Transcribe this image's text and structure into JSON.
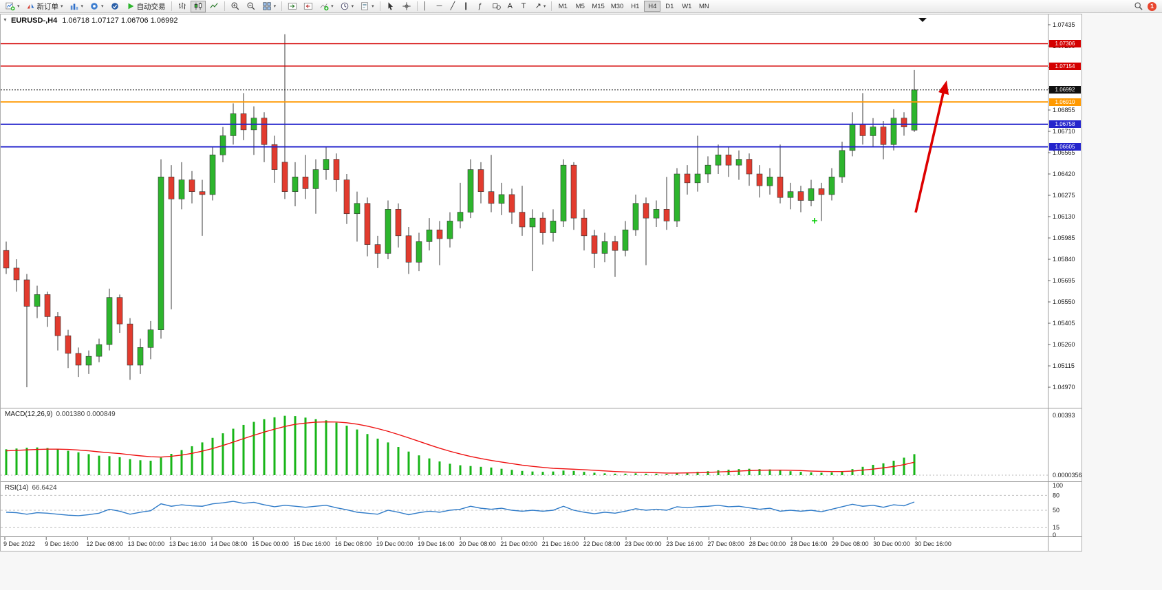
{
  "toolbar": {
    "new_order_label": "新订单",
    "autotrading_label": "自动交易",
    "timeframes": [
      "M1",
      "M5",
      "M15",
      "M30",
      "H1",
      "H4",
      "D1",
      "W1",
      "MN"
    ],
    "active_timeframe": "H4",
    "notification_count": "1",
    "icon_glyphs": {
      "vline": "│",
      "hline": "─",
      "trendline": "╱",
      "channel": "∥",
      "fibonacci": "ƒ",
      "text_tool": "A",
      "label_tool": "T",
      "arrows_tool": "↗"
    }
  },
  "main_chart": {
    "title_symbol_period": "EURUSD-,H4",
    "title_ohlc": "1.06718 1.07127 1.06706 1.06992",
    "open": "1.06718",
    "high": "1.07127",
    "low": "1.06706",
    "close": "1.06992"
  },
  "macd_panel": {
    "label": "MACD(12,26,9)",
    "values": "0.001380 0.000849",
    "axis_max": "0.00393",
    "axis_min": "0.0000356"
  },
  "rsi_panel": {
    "label": "RSI(14)",
    "value": "66.6424"
  },
  "chart_data": {
    "type": "candlestick",
    "symbol": "EURUSD-",
    "timeframe": "H4",
    "bars_per_x_label": 4,
    "x_labels": [
      "9 Dec 2022",
      "9 Dec 16:00",
      "12 Dec 08:00",
      "13 Dec 00:00",
      "13 Dec 16:00",
      "14 Dec 08:00",
      "15 Dec 00:00",
      "15 Dec 16:00",
      "16 Dec 08:00",
      "19 Dec 00:00",
      "19 Dec 16:00",
      "20 Dec 08:00",
      "21 Dec 00:00",
      "21 Dec 16:00",
      "22 Dec 08:00",
      "23 Dec 00:00",
      "23 Dec 16:00",
      "27 Dec 08:00",
      "28 Dec 00:00",
      "28 Dec 16:00",
      "29 Dec 08:00",
      "30 Dec 00:00",
      "30 Dec 16:00"
    ],
    "price_axis": [
      "1.07435",
      "1.07290",
      "1.07145",
      "1.07000",
      "1.06855",
      "1.06710",
      "1.06565",
      "1.06420",
      "1.06275",
      "1.06130",
      "1.05985",
      "1.05840",
      "1.05695",
      "1.05550",
      "1.05405",
      "1.05260",
      "1.05115",
      "1.04970"
    ],
    "main_ylim": [
      1.0483,
      1.07505
    ],
    "levels": [
      {
        "price": 1.07306,
        "label": "1.07306",
        "color": "#d40000",
        "style": "solid",
        "width": 1.4
      },
      {
        "price": 1.07154,
        "label": "1.07154",
        "color": "#d40000",
        "style": "solid",
        "width": 1.4
      },
      {
        "price": 1.06992,
        "label": "1.06992",
        "color": "#101010",
        "style": "dotted",
        "width": 1
      },
      {
        "price": 1.0691,
        "label": "1.06910",
        "color": "#ff9900",
        "style": "solid",
        "width": 2
      },
      {
        "price": 1.06758,
        "label": "1.06758",
        "color": "#2424cc",
        "style": "solid",
        "width": 2
      },
      {
        "price": 1.06605,
        "label": "1.06605",
        "color": "#2424cc",
        "style": "solid",
        "width": 2
      }
    ],
    "current_price": 1.06992,
    "candles": [
      [
        1.059,
        1.0596,
        1.0574,
        1.0578
      ],
      [
        1.0578,
        1.0584,
        1.0562,
        1.057
      ],
      [
        1.057,
        1.0574,
        1.0497,
        1.0552
      ],
      [
        1.0552,
        1.0566,
        1.0544,
        1.056
      ],
      [
        1.056,
        1.0562,
        1.0538,
        1.0545
      ],
      [
        1.0545,
        1.0548,
        1.0522,
        1.0532
      ],
      [
        1.0532,
        1.0536,
        1.051,
        1.052
      ],
      [
        1.052,
        1.0524,
        1.0504,
        1.0512
      ],
      [
        1.0512,
        1.0522,
        1.0506,
        1.0518
      ],
      [
        1.0518,
        1.053,
        1.0514,
        1.0526
      ],
      [
        1.0526,
        1.0564,
        1.0522,
        1.0558
      ],
      [
        1.0558,
        1.056,
        1.0534,
        1.054
      ],
      [
        1.054,
        1.0544,
        1.0502,
        1.0512
      ],
      [
        1.0512,
        1.053,
        1.0506,
        1.0524
      ],
      [
        1.0524,
        1.0542,
        1.0516,
        1.0536
      ],
      [
        1.0536,
        1.0652,
        1.053,
        1.064
      ],
      [
        1.064,
        1.0648,
        1.055,
        1.0625
      ],
      [
        1.0625,
        1.065,
        1.0618,
        1.0638
      ],
      [
        1.0638,
        1.0644,
        1.0622,
        1.063
      ],
      [
        1.063,
        1.0638,
        1.06,
        1.0628
      ],
      [
        1.0628,
        1.066,
        1.0624,
        1.0655
      ],
      [
        1.0655,
        1.0674,
        1.065,
        1.0668
      ],
      [
        1.0668,
        1.069,
        1.0662,
        1.0683
      ],
      [
        1.0683,
        1.0697,
        1.0665,
        1.0672
      ],
      [
        1.0672,
        1.0688,
        1.0655,
        1.068
      ],
      [
        1.068,
        1.0684,
        1.065,
        1.0662
      ],
      [
        1.0662,
        1.0668,
        1.0636,
        1.0645
      ],
      [
        1.065,
        1.0737,
        1.0625,
        1.063
      ],
      [
        1.063,
        1.065,
        1.062,
        1.064
      ],
      [
        1.064,
        1.0655,
        1.0625,
        1.0632
      ],
      [
        1.0632,
        1.0652,
        1.0615,
        1.0645
      ],
      [
        1.0645,
        1.066,
        1.0638,
        1.0652
      ],
      [
        1.0652,
        1.0656,
        1.063,
        1.0638
      ],
      [
        1.0638,
        1.0642,
        1.0608,
        1.0615
      ],
      [
        1.0615,
        1.063,
        1.0596,
        1.0622
      ],
      [
        1.0622,
        1.0626,
        1.0586,
        1.0594
      ],
      [
        1.0594,
        1.06,
        1.0578,
        1.0588
      ],
      [
        1.0588,
        1.0624,
        1.0584,
        1.0618
      ],
      [
        1.0618,
        1.0622,
        1.0592,
        1.06
      ],
      [
        1.06,
        1.0606,
        1.0574,
        1.0582
      ],
      [
        1.0582,
        1.0602,
        1.0576,
        1.0596
      ],
      [
        1.0596,
        1.0612,
        1.059,
        1.0604
      ],
      [
        1.0604,
        1.061,
        1.058,
        1.0598
      ],
      [
        1.0598,
        1.0616,
        1.0592,
        1.061
      ],
      [
        1.061,
        1.0636,
        1.0605,
        1.0616
      ],
      [
        1.0616,
        1.0652,
        1.0612,
        1.0645
      ],
      [
        1.0645,
        1.065,
        1.0622,
        1.063
      ],
      [
        1.063,
        1.0655,
        1.0616,
        1.0622
      ],
      [
        1.0622,
        1.0636,
        1.0614,
        1.0628
      ],
      [
        1.0628,
        1.0632,
        1.0608,
        1.0616
      ],
      [
        1.0616,
        1.0634,
        1.06,
        1.0606
      ],
      [
        1.0606,
        1.0618,
        1.0576,
        1.0612
      ],
      [
        1.0612,
        1.0616,
        1.0594,
        1.0602
      ],
      [
        1.0602,
        1.0618,
        1.0596,
        1.061
      ],
      [
        1.061,
        1.0652,
        1.0606,
        1.0648
      ],
      [
        1.0648,
        1.065,
        1.0604,
        1.0612
      ],
      [
        1.0612,
        1.0618,
        1.059,
        1.06
      ],
      [
        1.06,
        1.0604,
        1.0578,
        1.0588
      ],
      [
        1.0588,
        1.0602,
        1.0582,
        1.0596
      ],
      [
        1.0596,
        1.06,
        1.0572,
        1.059
      ],
      [
        1.059,
        1.061,
        1.0586,
        1.0604
      ],
      [
        1.0604,
        1.0628,
        1.06,
        1.0622
      ],
      [
        1.0622,
        1.0626,
        1.058,
        1.0612
      ],
      [
        1.0612,
        1.0624,
        1.0606,
        1.0618
      ],
      [
        1.0618,
        1.064,
        1.0604,
        1.061
      ],
      [
        1.061,
        1.0646,
        1.0606,
        1.0642
      ],
      [
        1.0642,
        1.0648,
        1.0628,
        1.0636
      ],
      [
        1.0636,
        1.0668,
        1.063,
        1.0642
      ],
      [
        1.0642,
        1.0654,
        1.0636,
        1.0648
      ],
      [
        1.0648,
        1.0662,
        1.0642,
        1.0655
      ],
      [
        1.0655,
        1.066,
        1.064,
        1.0648
      ],
      [
        1.0648,
        1.0658,
        1.0638,
        1.0652
      ],
      [
        1.0652,
        1.0656,
        1.0634,
        1.0642
      ],
      [
        1.0642,
        1.0648,
        1.0626,
        1.0634
      ],
      [
        1.0634,
        1.0646,
        1.0628,
        1.064
      ],
      [
        1.064,
        1.0662,
        1.0622,
        1.0626
      ],
      [
        1.0626,
        1.0636,
        1.0618,
        1.063
      ],
      [
        1.063,
        1.0634,
        1.0616,
        1.0624
      ],
      [
        1.0624,
        1.0638,
        1.062,
        1.0632
      ],
      [
        1.0632,
        1.0636,
        1.061,
        1.0628
      ],
      [
        1.0628,
        1.0646,
        1.0624,
        1.064
      ],
      [
        1.064,
        1.0664,
        1.0636,
        1.0658
      ],
      [
        1.0658,
        1.0684,
        1.0654,
        1.0676
      ],
      [
        1.0676,
        1.0697,
        1.0662,
        1.0668
      ],
      [
        1.0668,
        1.068,
        1.066,
        1.0674
      ],
      [
        1.0674,
        1.0678,
        1.0652,
        1.0662
      ],
      [
        1.0662,
        1.0686,
        1.0658,
        1.068
      ],
      [
        1.068,
        1.0684,
        1.0668,
        1.0674
      ],
      [
        1.06718,
        1.07127,
        1.06706,
        1.06992
      ]
    ],
    "macd": {
      "params": "12,26,9",
      "last_values": [
        0.00138,
        0.000849
      ],
      "ylim": [
        -0.000406,
        0.004336
      ],
      "histogram": [
        0.0017,
        0.00175,
        0.0018,
        0.00182,
        0.00178,
        0.0017,
        0.0016,
        0.0015,
        0.00138,
        0.00128,
        0.00125,
        0.00118,
        0.00105,
        0.00098,
        0.00095,
        0.00115,
        0.0014,
        0.00165,
        0.0019,
        0.00215,
        0.00245,
        0.00275,
        0.00305,
        0.0033,
        0.0035,
        0.00368,
        0.0038,
        0.0039,
        0.00388,
        0.00378,
        0.00368,
        0.0036,
        0.00345,
        0.00325,
        0.003,
        0.0027,
        0.0024,
        0.00215,
        0.00185,
        0.00155,
        0.0013,
        0.0011,
        0.0009,
        0.00075,
        0.00065,
        0.0006,
        0.00055,
        0.0005,
        0.00042,
        0.00035,
        0.00028,
        0.00024,
        0.00022,
        0.00024,
        0.0003,
        0.00028,
        0.00022,
        0.00016,
        0.00012,
        0.0001,
        0.0001,
        0.00012,
        0.0001,
        0.0001,
        8e-05,
        0.00012,
        0.00018,
        0.00022,
        0.00026,
        0.00032,
        0.00036,
        0.0004,
        0.00042,
        0.0004,
        0.00038,
        0.00032,
        0.00026,
        0.00022,
        0.00018,
        0.00016,
        0.00018,
        0.00026,
        0.0004,
        0.00055,
        0.00068,
        0.00078,
        0.00095,
        0.00115,
        0.00138
      ],
      "signal": [
        0.0016,
        0.00163,
        0.00166,
        0.00169,
        0.00171,
        0.00171,
        0.00169,
        0.00165,
        0.0016,
        0.00153,
        0.00147,
        0.00142,
        0.00134,
        0.00127,
        0.00121,
        0.00119,
        0.00124,
        0.00132,
        0.00143,
        0.00158,
        0.00175,
        0.00195,
        0.00217,
        0.0024,
        0.00262,
        0.00283,
        0.00302,
        0.0032,
        0.00334,
        0.00342,
        0.00348,
        0.0035,
        0.00349,
        0.00344,
        0.00335,
        0.00322,
        0.00306,
        0.00288,
        0.00267,
        0.00245,
        0.00222,
        0.00199,
        0.00177,
        0.00157,
        0.00139,
        0.00123,
        0.00109,
        0.00097,
        0.00086,
        0.00076,
        0.00066,
        0.00058,
        0.00051,
        0.00045,
        0.00042,
        0.00039,
        0.00036,
        0.00032,
        0.00028,
        0.00024,
        0.00021,
        0.00019,
        0.00018,
        0.00016,
        0.00014,
        0.00014,
        0.00015,
        0.00016,
        0.00018,
        0.00021,
        0.00024,
        0.00027,
        0.0003,
        0.00032,
        0.00033,
        0.00033,
        0.00032,
        0.0003,
        0.00027,
        0.00025,
        0.00024,
        0.00024,
        0.00027,
        0.00033,
        0.0004,
        0.00048,
        0.00057,
        0.00069,
        0.00085
      ]
    },
    "rsi": {
      "period": 14,
      "last_value": 66.6424,
      "levels": [
        80,
        50,
        15
      ],
      "axis_labels": [
        "100",
        "80",
        "50",
        "15",
        "0"
      ],
      "ylim": [
        0,
        100
      ],
      "values": [
        46,
        45,
        42,
        45,
        44,
        42,
        40,
        39,
        41,
        44,
        52,
        48,
        42,
        46,
        49,
        63,
        58,
        61,
        59,
        58,
        63,
        65,
        68,
        64,
        66,
        61,
        57,
        60,
        58,
        56,
        58,
        60,
        55,
        51,
        46,
        44,
        42,
        50,
        46,
        41,
        45,
        48,
        46,
        50,
        52,
        58,
        54,
        52,
        54,
        50,
        48,
        50,
        48,
        50,
        58,
        50,
        46,
        43,
        46,
        44,
        48,
        53,
        50,
        52,
        50,
        57,
        55,
        57,
        58,
        60,
        57,
        58,
        55,
        52,
        54,
        48,
        50,
        48,
        50,
        47,
        52,
        57,
        62,
        58,
        60,
        56,
        61,
        59,
        66.64
      ],
      "line_color": "#2f7bc8"
    },
    "colors": {
      "bull": "#2db52d",
      "bear": "#e23b2e",
      "wick": "#3a3a3a",
      "macd_hist": "#17b517",
      "macd_signal": "#ee1111"
    },
    "annotations": [
      {
        "type": "arrow",
        "direction": "up-right",
        "color": "#dd0000"
      },
      {
        "type": "plus-marker",
        "color": "#00cc00"
      }
    ]
  }
}
